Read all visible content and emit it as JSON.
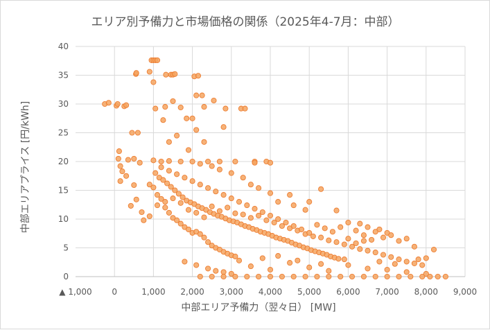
{
  "chart_data": {
    "type": "scatter",
    "title": "エリア別予備力と市場価格の関係（2025年4-7月：中部）",
    "xlabel": "中部エリア予備力（翌々日） [MW]",
    "ylabel": "中部エリアプライス [円/kWh]",
    "xlim": [
      -1000,
      9000
    ],
    "ylim": [
      0,
      40
    ],
    "x_tick_labels": [
      "▲ 1,000",
      "0",
      "1,000",
      "2,000",
      "3,000",
      "4,000",
      "5,000",
      "6,000",
      "7,000",
      "8,000",
      "9,000"
    ],
    "y_tick_labels": [
      "0",
      "5",
      "10",
      "15",
      "20",
      "25",
      "30",
      "35",
      "40"
    ],
    "grid": true,
    "legend": "none",
    "marker_color": "#F4A460",
    "marker_edge_color": "#ED7D31",
    "series": [
      {
        "points": [
          [
            -250,
            30
          ],
          [
            -150,
            30.2
          ],
          [
            50,
            29.7
          ],
          [
            80,
            30
          ],
          [
            250,
            29.6
          ],
          [
            300,
            29.8
          ],
          [
            550,
            35.2
          ],
          [
            560,
            35.4
          ],
          [
            950,
            37.6
          ],
          [
            1000,
            37.6
          ],
          [
            1050,
            37.6
          ],
          [
            1100,
            37.6
          ],
          [
            1320,
            35.1
          ],
          [
            1450,
            35.1
          ],
          [
            1500,
            35.1
          ],
          [
            1550,
            35.2
          ],
          [
            2050,
            34.8
          ],
          [
            2150,
            34.9
          ],
          [
            900,
            35.6
          ],
          [
            1000,
            33.8
          ],
          [
            1050,
            29.2
          ],
          [
            1300,
            29.5
          ],
          [
            1500,
            30.5
          ],
          [
            1700,
            29.4
          ],
          [
            2100,
            31.5
          ],
          [
            2250,
            31.5
          ],
          [
            2300,
            29.5
          ],
          [
            2550,
            30.6
          ],
          [
            2850,
            29.2
          ],
          [
            3250,
            29.2
          ],
          [
            3350,
            29.2
          ],
          [
            1850,
            27.5
          ],
          [
            2000,
            27.5
          ],
          [
            2100,
            25.5
          ],
          [
            2800,
            26.0
          ],
          [
            450,
            25.0
          ],
          [
            600,
            25.0
          ],
          [
            1250,
            27.2
          ],
          [
            1400,
            23.4
          ],
          [
            2300,
            23.4
          ],
          [
            1600,
            24.5
          ],
          [
            1900,
            22.0
          ],
          [
            100,
            20.5
          ],
          [
            150,
            19.2
          ],
          [
            200,
            18.3
          ],
          [
            300,
            17.5
          ],
          [
            350,
            20.3
          ],
          [
            500,
            20.5
          ],
          [
            650,
            19.8
          ],
          [
            120,
            21.8
          ],
          [
            150,
            16.6
          ],
          [
            500,
            15.9
          ],
          [
            420,
            12.3
          ],
          [
            560,
            13.4
          ],
          [
            700,
            11.2
          ],
          [
            750,
            9.8
          ],
          [
            900,
            10.5
          ],
          [
            1000,
            20.2
          ],
          [
            1200,
            20.0
          ],
          [
            1400,
            20.1
          ],
          [
            1700,
            20.0
          ],
          [
            2000,
            20.0
          ],
          [
            2400,
            20.0
          ],
          [
            2700,
            20.0
          ],
          [
            3100,
            20.0
          ],
          [
            3600,
            20.0
          ],
          [
            3900,
            20.0
          ],
          [
            900,
            16.0
          ],
          [
            1000,
            15.5
          ],
          [
            1100,
            14.2
          ],
          [
            1200,
            13.5
          ],
          [
            1300,
            12.0
          ],
          [
            1400,
            11.1
          ],
          [
            1500,
            10.2
          ],
          [
            1600,
            9.8
          ],
          [
            1700,
            9.2
          ],
          [
            1800,
            8.6
          ],
          [
            1900,
            8.2
          ],
          [
            2000,
            7.6
          ],
          [
            2100,
            7.8
          ],
          [
            2200,
            7.4
          ],
          [
            2300,
            6.8
          ],
          [
            2400,
            6.0
          ],
          [
            2500,
            5.4
          ],
          [
            2600,
            5.0
          ],
          [
            2700,
            4.7
          ],
          [
            2800,
            4.3
          ],
          [
            2900,
            4.0
          ],
          [
            3000,
            3.7
          ],
          [
            3100,
            3.5
          ],
          [
            1050,
            18.0
          ],
          [
            1150,
            17.2
          ],
          [
            1250,
            16.8
          ],
          [
            1350,
            16.2
          ],
          [
            1450,
            15.6
          ],
          [
            1550,
            15.0
          ],
          [
            1650,
            14.4
          ],
          [
            1750,
            13.8
          ],
          [
            1850,
            13.2
          ],
          [
            1950,
            12.9
          ],
          [
            2050,
            12.6
          ],
          [
            2150,
            12.2
          ],
          [
            2250,
            11.9
          ],
          [
            2350,
            11.6
          ],
          [
            2450,
            11.2
          ],
          [
            2550,
            10.9
          ],
          [
            2650,
            10.6
          ],
          [
            2750,
            10.4
          ],
          [
            2850,
            10.1
          ],
          [
            2950,
            9.8
          ],
          [
            3050,
            9.6
          ],
          [
            3150,
            9.4
          ],
          [
            3250,
            9.1
          ],
          [
            3350,
            8.8
          ],
          [
            3450,
            8.6
          ],
          [
            3550,
            8.3
          ],
          [
            3650,
            8.1
          ],
          [
            3750,
            7.8
          ],
          [
            3850,
            7.6
          ],
          [
            3950,
            7.4
          ],
          [
            4050,
            7.1
          ],
          [
            4150,
            6.8
          ],
          [
            4250,
            6.6
          ],
          [
            4350,
            6.4
          ],
          [
            4450,
            6.2
          ],
          [
            4550,
            5.9
          ],
          [
            4650,
            5.6
          ],
          [
            4750,
            5.4
          ],
          [
            4850,
            5.1
          ],
          [
            4950,
            4.9
          ],
          [
            5050,
            4.6
          ],
          [
            5150,
            4.4
          ],
          [
            5250,
            4.2
          ],
          [
            5350,
            4.0
          ],
          [
            5450,
            3.8
          ],
          [
            5550,
            3.5
          ],
          [
            5650,
            3.3
          ],
          [
            5750,
            3.1
          ],
          [
            1100,
            12.4
          ],
          [
            1300,
            13.0
          ],
          [
            1500,
            13.6
          ],
          [
            1700,
            12.8
          ],
          [
            1900,
            11.6
          ],
          [
            2100,
            11.1
          ],
          [
            2300,
            10.3
          ],
          [
            2500,
            12.2
          ],
          [
            2700,
            11.4
          ],
          [
            2900,
            12.0
          ],
          [
            3100,
            11.0
          ],
          [
            3300,
            10.8
          ],
          [
            3500,
            10.2
          ],
          [
            3700,
            10.6
          ],
          [
            3900,
            9.8
          ],
          [
            4100,
            9.4
          ],
          [
            4300,
            8.8
          ],
          [
            4500,
            8.4
          ],
          [
            4700,
            8.0
          ],
          [
            4900,
            7.4
          ],
          [
            5100,
            7.0
          ],
          [
            5300,
            6.8
          ],
          [
            5500,
            6.3
          ],
          [
            5700,
            6.0
          ],
          [
            5900,
            5.6
          ],
          [
            6100,
            5.2
          ],
          [
            6300,
            4.8
          ],
          [
            6500,
            4.5
          ],
          [
            6700,
            4.2
          ],
          [
            6900,
            3.8
          ],
          [
            7100,
            3.4
          ],
          [
            7300,
            3.0
          ],
          [
            7500,
            2.6
          ],
          [
            7700,
            2.3
          ],
          [
            7900,
            2.0
          ],
          [
            1200,
            19.0
          ],
          [
            1400,
            18.4
          ],
          [
            1600,
            17.8
          ],
          [
            1800,
            17.2
          ],
          [
            2000,
            16.6
          ],
          [
            2200,
            16.0
          ],
          [
            2400,
            15.4
          ],
          [
            2600,
            14.8
          ],
          [
            2800,
            14.2
          ],
          [
            3000,
            13.6
          ],
          [
            3200,
            13.0
          ],
          [
            3400,
            12.4
          ],
          [
            3600,
            11.8
          ],
          [
            3800,
            11.2
          ],
          [
            4000,
            10.6
          ],
          [
            4200,
            10.0
          ],
          [
            4400,
            9.4
          ],
          [
            4600,
            8.8
          ],
          [
            4800,
            8.2
          ],
          [
            5000,
            7.6
          ],
          [
            5200,
            9.0
          ],
          [
            5400,
            8.4
          ],
          [
            5600,
            7.8
          ],
          [
            5800,
            8.6
          ],
          [
            6000,
            9.4
          ],
          [
            6200,
            8.0
          ],
          [
            6400,
            7.2
          ],
          [
            6600,
            6.4
          ],
          [
            6800,
            8.2
          ],
          [
            7000,
            7.6
          ],
          [
            4500,
            14.2
          ],
          [
            5300,
            15.2
          ],
          [
            5700,
            11.5
          ],
          [
            4200,
            13.0
          ],
          [
            4600,
            12.4
          ],
          [
            4900,
            11.6
          ],
          [
            5000,
            13.0
          ],
          [
            4000,
            14.5
          ],
          [
            3700,
            15.4
          ],
          [
            3500,
            16.0
          ],
          [
            3300,
            17.2
          ],
          [
            3000,
            18.0
          ],
          [
            2700,
            18.6
          ],
          [
            2500,
            19.2
          ],
          [
            2200,
            19.6
          ],
          [
            4000,
            19.8
          ],
          [
            3600,
            19.8
          ],
          [
            6300,
            9.2
          ],
          [
            6500,
            8.6
          ],
          [
            6700,
            7.8
          ],
          [
            6900,
            6.8
          ],
          [
            7100,
            7.2
          ],
          [
            7300,
            6.2
          ],
          [
            7500,
            6.6
          ],
          [
            7700,
            5.2
          ],
          [
            8200,
            4.7
          ],
          [
            6000,
            6.6
          ],
          [
            6200,
            5.8
          ],
          [
            6400,
            6.2
          ],
          [
            1800,
            2.6
          ],
          [
            2100,
            2.0
          ],
          [
            2400,
            1.4
          ],
          [
            2600,
            1.0
          ],
          [
            2800,
            0.8
          ],
          [
            3000,
            0.5
          ],
          [
            2200,
            0
          ],
          [
            2500,
            0
          ],
          [
            2800,
            0
          ],
          [
            3100,
            0
          ],
          [
            3400,
            0
          ],
          [
            3700,
            0
          ],
          [
            4000,
            0
          ],
          [
            4300,
            0
          ],
          [
            4600,
            0
          ],
          [
            4900,
            0
          ],
          [
            5200,
            0
          ],
          [
            5500,
            0
          ],
          [
            5800,
            0
          ],
          [
            6100,
            0
          ],
          [
            6400,
            0
          ],
          [
            6700,
            0
          ],
          [
            7000,
            0
          ],
          [
            7300,
            0
          ],
          [
            7600,
            0
          ],
          [
            7900,
            0
          ],
          [
            8100,
            0
          ],
          [
            8300,
            0
          ],
          [
            8500,
            0
          ],
          [
            3500,
            1.8
          ],
          [
            4000,
            1.2
          ],
          [
            4500,
            2.4
          ],
          [
            5000,
            1.6
          ],
          [
            5500,
            1.0
          ],
          [
            6000,
            2.0
          ],
          [
            6500,
            1.4
          ],
          [
            7000,
            1.2
          ],
          [
            7500,
            0.8
          ],
          [
            8000,
            0.5
          ],
          [
            3200,
            2.8
          ],
          [
            3800,
            3.2
          ],
          [
            4200,
            3.6
          ],
          [
            4700,
            2.8
          ],
          [
            5300,
            2.2
          ],
          [
            5900,
            3.0
          ],
          [
            6800,
            2.6
          ],
          [
            7200,
            2.2
          ],
          [
            7800,
            3.0
          ],
          [
            8000,
            3.2
          ]
        ]
      }
    ]
  }
}
